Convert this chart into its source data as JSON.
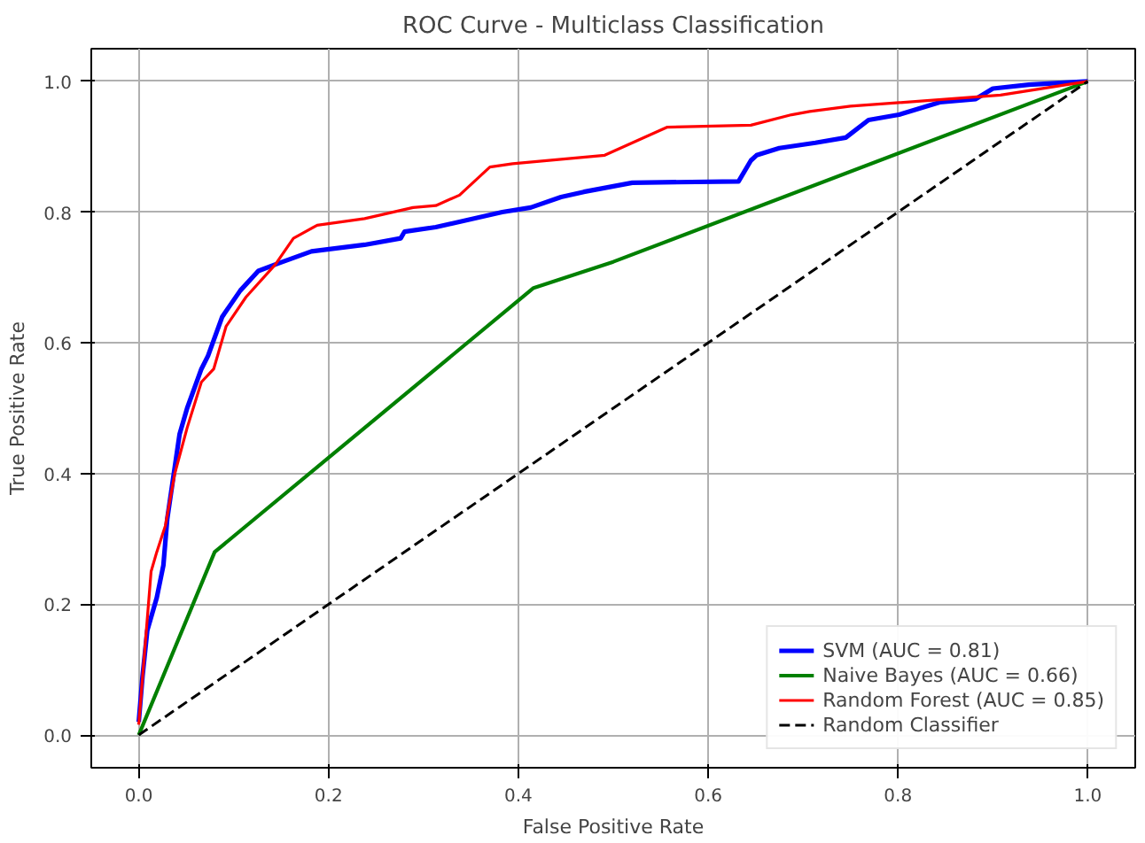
{
  "chart_data": {
    "type": "line",
    "title": "ROC Curve - Multiclass Classification",
    "xlabel": "False Positive Rate",
    "ylabel": "True Positive Rate",
    "xlim": [
      -0.05,
      1.05
    ],
    "ylim": [
      -0.05,
      1.05
    ],
    "xticks": [
      {
        "value": 0,
        "label": "0.0"
      },
      {
        "value": 0.2,
        "label": "0.2"
      },
      {
        "value": 0.4,
        "label": "0.4"
      },
      {
        "value": 0.6,
        "label": "0.6"
      },
      {
        "value": 0.8,
        "label": "0.8"
      },
      {
        "value": 1,
        "label": "1.0"
      }
    ],
    "yticks": [
      {
        "value": 0,
        "label": "0.0"
      },
      {
        "value": 0.2,
        "label": "0.2"
      },
      {
        "value": 0.4,
        "label": "0.4"
      },
      {
        "value": 0.6,
        "label": "0.6"
      },
      {
        "value": 0.8,
        "label": "0.8"
      },
      {
        "value": 1,
        "label": "1.0"
      }
    ],
    "grid": true,
    "legend": "bottom right",
    "series": [
      {
        "name": "SVM (AUC = 0.81)",
        "color": "#0000ff",
        "line_style": "solid",
        "x": [
          0,
          0.004,
          0.009,
          0.019,
          0.026,
          0.03,
          0.038,
          0.043,
          0.051,
          0.066,
          0.073,
          0.088,
          0.107,
          0.126,
          0.144,
          0.182,
          0.238,
          0.276,
          0.28,
          0.313,
          0.383,
          0.413,
          0.445,
          0.469,
          0.52,
          0.632,
          0.645,
          0.651,
          0.675,
          0.713,
          0.745,
          0.769,
          0.801,
          0.844,
          0.882,
          0.9,
          0.938,
          1
        ],
        "values": [
          0.02,
          0.09,
          0.16,
          0.21,
          0.26,
          0.33,
          0.41,
          0.46,
          0.5,
          0.56,
          0.58,
          0.64,
          0.68,
          0.71,
          0.72,
          0.74,
          0.75,
          0.76,
          0.77,
          0.777,
          0.8,
          0.807,
          0.823,
          0.831,
          0.845,
          0.847,
          0.879,
          0.887,
          0.898,
          0.906,
          0.914,
          0.941,
          0.949,
          0.968,
          0.973,
          0.989,
          0.995,
          1
        ]
      },
      {
        "name": "Naive Bayes (AUC = 0.66)",
        "color": "#008000",
        "line_style": "solid",
        "x": [
          0,
          0.08,
          0.416,
          0.5,
          1
        ],
        "values": [
          0,
          0.28,
          0.684,
          0.724,
          1
        ]
      },
      {
        "name": "Random Forest (AUC = 0.85)",
        "color": "#ff0000",
        "line_style": "solid",
        "x": [
          0,
          0.013,
          0.019,
          0.028,
          0.038,
          0.051,
          0.066,
          0.079,
          0.092,
          0.113,
          0.144,
          0.163,
          0.188,
          0.238,
          0.289,
          0.313,
          0.338,
          0.37,
          0.394,
          0.491,
          0.557,
          0.645,
          0.688,
          0.707,
          0.75,
          0.908,
          1
        ],
        "values": [
          0.016,
          0.25,
          0.28,
          0.32,
          0.4,
          0.47,
          0.54,
          0.56,
          0.625,
          0.67,
          0.72,
          0.76,
          0.78,
          0.79,
          0.807,
          0.81,
          0.826,
          0.869,
          0.874,
          0.887,
          0.93,
          0.933,
          0.949,
          0.954,
          0.962,
          0.979,
          1
        ]
      },
      {
        "name": "Random Classifier",
        "color": "#000000",
        "line_style": "dashed",
        "x": [
          0,
          1
        ],
        "values": [
          0,
          1
        ]
      }
    ]
  }
}
